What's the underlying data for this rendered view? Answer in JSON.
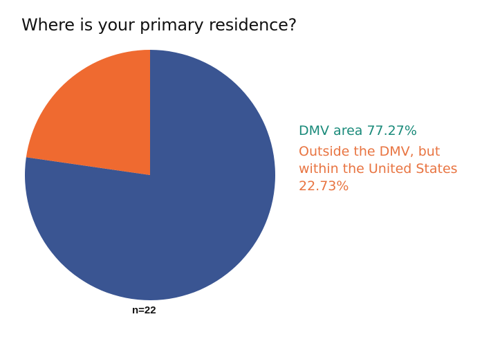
{
  "chart_data": {
    "type": "pie",
    "title": "Where is your primary residence?",
    "categories": [
      "DMV area",
      "Outside the DMV, but within the United States"
    ],
    "values": [
      77.27,
      22.73
    ],
    "colors": [
      "#3A5592",
      "#EF6A30"
    ],
    "label_colors": [
      "#1A8A7A",
      "#E87441"
    ],
    "annotations": [
      "n=22"
    ],
    "legend_position": "right"
  },
  "title": "Where is your primary residence?",
  "legend": {
    "dmv": "DMV area 77.27%",
    "outside": "Outside the DMV, but within the United States 22.73%"
  },
  "sample_size": "n=22"
}
